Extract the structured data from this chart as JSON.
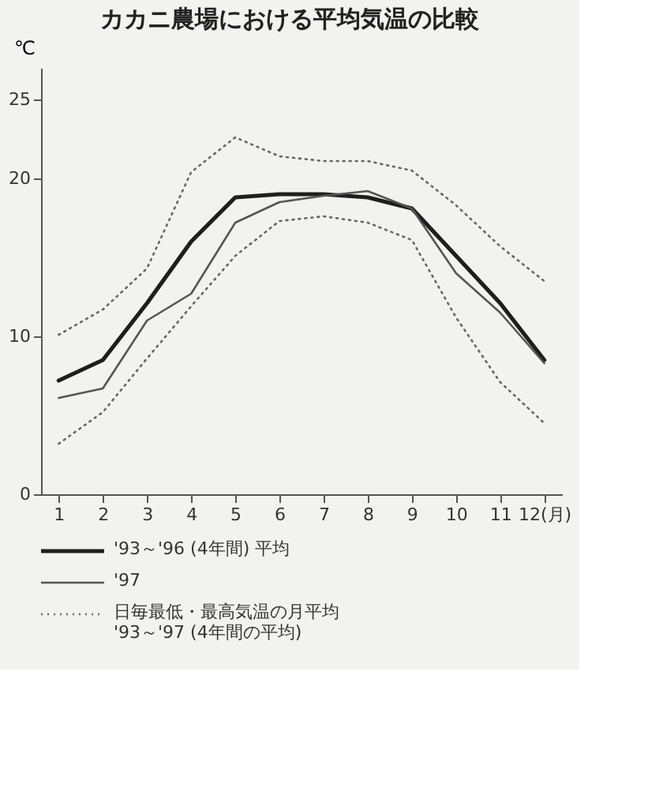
{
  "chart_data": {
    "type": "line",
    "title": "カカニ農場における平均気温の比較",
    "ylabel": "℃",
    "x": [
      1,
      2,
      3,
      4,
      5,
      6,
      7,
      8,
      9,
      10,
      11,
      12
    ],
    "xlim": [
      0.6,
      12.4
    ],
    "xticks": [
      1,
      2,
      3,
      4,
      5,
      6,
      7,
      8,
      9,
      10,
      11,
      {
        "value": 12,
        "label": "12(月)"
      }
    ],
    "ylim": [
      0,
      27
    ],
    "yticks": [
      0,
      10,
      20,
      25
    ],
    "grid": false,
    "legend": "bottom",
    "marker": "none",
    "series": [
      {
        "name": "'93～'96 (4年間) 平均",
        "color": "#1e1e1e",
        "line_style": "solid",
        "values": [
          7.2,
          8.5,
          12.1,
          16.0,
          18.8,
          19.0,
          19.0,
          18.8,
          18.1,
          15.1,
          12.1,
          8.5
        ]
      },
      {
        "name": "'97",
        "color": "#555555",
        "line_style": "solid",
        "values": [
          6.1,
          6.7,
          11.0,
          12.7,
          17.2,
          18.5,
          18.9,
          19.2,
          18.1,
          14.0,
          11.5,
          8.3
        ]
      },
      {
        "name": "日毎最低・最高気温の月平均\n'93～'97 (4年間の平均)",
        "color": "#666666",
        "line_style": "dotted",
        "values": [
          10.1,
          11.7,
          14.3,
          20.4,
          22.6,
          21.4,
          21.1,
          21.1,
          20.5,
          18.3,
          15.7,
          13.5
        ]
      },
      {
        "color": "#666666",
        "line_style": "dotted",
        "values": [
          3.2,
          5.2,
          8.6,
          11.9,
          15.1,
          17.3,
          17.6,
          17.2,
          16.1,
          11.2,
          7.1,
          4.5
        ]
      }
    ]
  }
}
